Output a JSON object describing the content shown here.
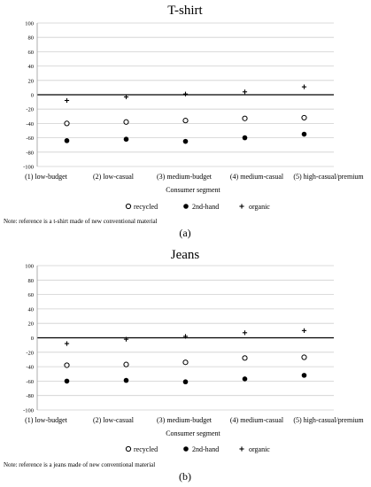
{
  "figure": {
    "legend_labels": [
      "recycled",
      "2nd-hand",
      "organic"
    ]
  },
  "chart_data": [
    {
      "type": "scatter",
      "title": "T-shirt",
      "xlabel": "Consumer segment",
      "ylabel": "",
      "ylim": [
        -100,
        100
      ],
      "yticks": [
        100,
        80,
        60,
        40,
        20,
        0,
        -20,
        -40,
        -60,
        -80,
        -100
      ],
      "grid": true,
      "categories": [
        "(1) low-budget",
        "(2) low-casual",
        "(3) medium-budget",
        "(4) medium-casual",
        "(5) high-casual/premium"
      ],
      "series": [
        {
          "name": "recycled",
          "marker": "open-circle",
          "values": [
            -40,
            -38,
            -36,
            -33,
            -32
          ]
        },
        {
          "name": "2nd-hand",
          "marker": "filled-circle",
          "values": [
            -64,
            -62,
            -65,
            -60,
            -55
          ]
        },
        {
          "name": "organic",
          "marker": "plus",
          "values": [
            -8,
            -3,
            1,
            4,
            11
          ]
        }
      ],
      "legend": "bottom-center",
      "note": "Note: reference is a t-shirt made of new conventional material",
      "panel_label": "(a)"
    },
    {
      "type": "scatter",
      "title": "Jeans",
      "xlabel": "Consumer segment",
      "ylabel": "",
      "ylim": [
        -100,
        100
      ],
      "yticks": [
        100,
        80,
        60,
        40,
        20,
        0,
        -20,
        -40,
        -60,
        -80,
        -100
      ],
      "grid": true,
      "categories": [
        "(1) low-budget",
        "(2) low-casual",
        "(3) medium-budget",
        "(4) medium-casual",
        "(5) high-casual/premium"
      ],
      "series": [
        {
          "name": "recycled",
          "marker": "open-circle",
          "values": [
            -38,
            -37,
            -34,
            -28,
            -27
          ]
        },
        {
          "name": "2nd-hand",
          "marker": "filled-circle",
          "values": [
            -60,
            -59,
            -61,
            -57,
            -52
          ]
        },
        {
          "name": "organic",
          "marker": "plus",
          "values": [
            -8,
            -2,
            2,
            7,
            10
          ]
        }
      ],
      "legend": "bottom-center",
      "note": "Note: reference is a jeans made of new conventional material",
      "panel_label": "(b)"
    }
  ]
}
